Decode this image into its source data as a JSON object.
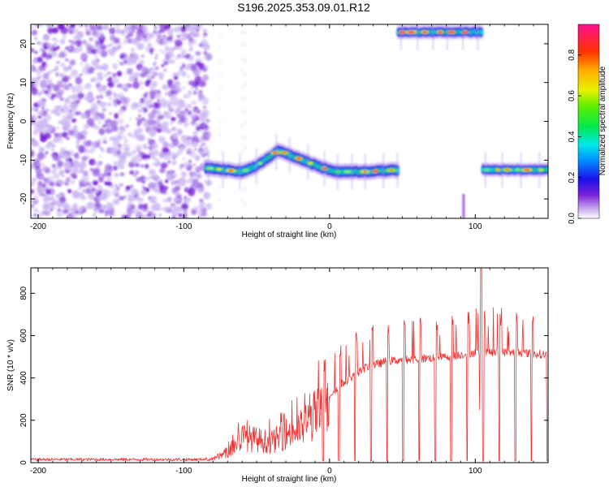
{
  "figure": {
    "title": "S196.2025.353.09.01.R12",
    "background": "#ffffff"
  },
  "chart_data": [
    {
      "type": "heatmap",
      "name": "spectrogram",
      "xlabel": "Height of straight line (km)",
      "ylabel": "Frequency (Hz)",
      "xlim": [
        -205,
        150
      ],
      "ylim": [
        -25,
        25
      ],
      "xticks": [
        -200,
        -100,
        0,
        100
      ],
      "yticks": [
        -20,
        -10,
        0,
        10,
        20
      ],
      "colorbar": {
        "label": "Normalized spectral amplitude",
        "range": [
          0,
          0.95
        ],
        "ticks": [
          "0.0",
          "0.2",
          "0.4",
          "0.6",
          "0.8"
        ]
      },
      "regions": [
        {
          "label": "broadband noise",
          "x_range": [
            -205,
            -85
          ],
          "freq_range": [
            -25,
            25
          ],
          "level": 0.12
        },
        {
          "label": "signal track",
          "x_range": [
            -85,
            47
          ],
          "freq_center": [
            [
              -85,
              -12
            ],
            [
              -60,
              -13
            ],
            [
              -50,
              -11.5
            ],
            [
              -35,
              -7.5
            ],
            [
              -25,
              -9
            ],
            [
              -15,
              -10.5
            ],
            [
              -5,
              -12
            ],
            [
              5,
              -13
            ],
            [
              25,
              -13
            ],
            [
              47,
              -12.5
            ]
          ],
          "level": 0.8
        },
        {
          "label": "aliased signal (upper)",
          "x_range": [
            47,
            105
          ],
          "freq_center": [
            [
              47,
              23
            ],
            [
              105,
              23
            ]
          ],
          "level": 0.9
        },
        {
          "label": "signal track",
          "x_range": [
            105,
            150
          ],
          "freq_center": [
            [
              105,
              -12.5
            ],
            [
              150,
              -12.5
            ]
          ],
          "level": 0.8
        }
      ]
    },
    {
      "type": "line",
      "name": "snr",
      "xlabel": "Height of straight line (km)",
      "ylabel": "SNR (10 * v/v)",
      "xlim": [
        -205,
        150
      ],
      "ylim": [
        0,
        920
      ],
      "xticks": [
        -200,
        -100,
        0,
        100
      ],
      "yticks": [
        0,
        200,
        400,
        600,
        800
      ],
      "color": "#ee3333",
      "x_range": [
        -205,
        150
      ],
      "envelope": [
        {
          "x": -205,
          "y": 15
        },
        {
          "x": -90,
          "y": 15
        },
        {
          "x": -80,
          "y": 20
        },
        {
          "x": -70,
          "y": 60
        },
        {
          "x": -60,
          "y": 150
        },
        {
          "x": -40,
          "y": 120
        },
        {
          "x": -30,
          "y": 170
        },
        {
          "x": -20,
          "y": 200
        },
        {
          "x": -10,
          "y": 280
        },
        {
          "x": 0,
          "y": 320
        },
        {
          "x": 10,
          "y": 380
        },
        {
          "x": 25,
          "y": 450
        },
        {
          "x": 40,
          "y": 480
        },
        {
          "x": 60,
          "y": 490
        },
        {
          "x": 80,
          "y": 500
        },
        {
          "x": 100,
          "y": 520
        },
        {
          "x": 130,
          "y": 520
        },
        {
          "x": 150,
          "y": 510
        }
      ],
      "peak": {
        "x": 104,
        "y": 920
      },
      "dropouts_start": -5,
      "dropout_period_km": 11
    }
  ]
}
